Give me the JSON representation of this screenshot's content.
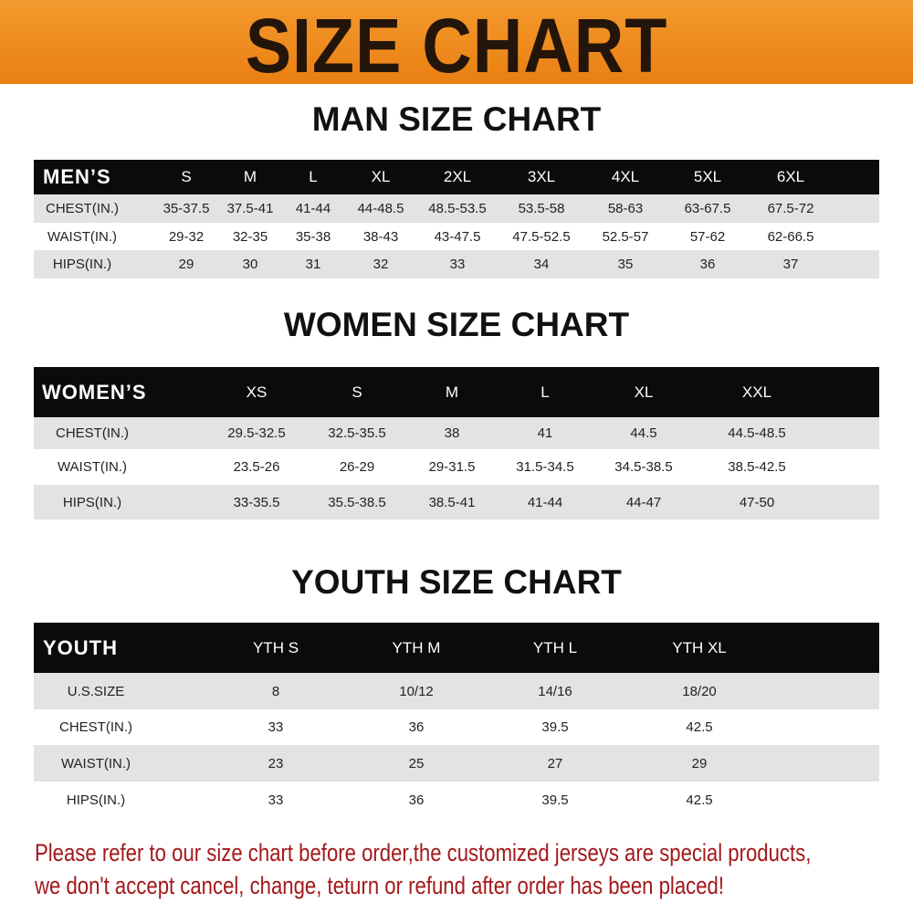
{
  "banner": {
    "title": "SIZE CHART",
    "color": "#ee8a1e"
  },
  "men": {
    "title": "MAN SIZE CHART",
    "header": [
      "MEN’S",
      "S",
      "M",
      "L",
      "XL",
      "2XL",
      "3XL",
      "4XL",
      "5XL",
      "6XL"
    ],
    "rows": [
      [
        "CHEST(IN.)",
        "35-37.5",
        "37.5-41",
        "41-44",
        "44-48.5",
        "48.5-53.5",
        "53.5-58",
        "58-63",
        "63-67.5",
        "67.5-72"
      ],
      [
        "WAIST(IN.)",
        "29-32",
        "32-35",
        "35-38",
        "38-43",
        "43-47.5",
        "47.5-52.5",
        "52.5-57",
        "57-62",
        "62-66.5"
      ],
      [
        "HIPS(IN.)",
        "29",
        "30",
        "31",
        "32",
        "33",
        "34",
        "35",
        "36",
        "37"
      ]
    ]
  },
  "women": {
    "title": "WOMEN SIZE CHART",
    "header": [
      "WOMEN’S",
      "XS",
      "S",
      "M",
      "L",
      "XL",
      "XXL"
    ],
    "rows": [
      [
        "CHEST(IN.)",
        "29.5-32.5",
        "32.5-35.5",
        "38",
        "41",
        "44.5",
        "44.5-48.5"
      ],
      [
        "WAIST(IN.)",
        "23.5-26",
        "26-29",
        "29-31.5",
        "31.5-34.5",
        "34.5-38.5",
        "38.5-42.5"
      ],
      [
        "HIPS(IN.)",
        "33-35.5",
        "35.5-38.5",
        "38.5-41",
        "41-44",
        "44-47",
        "47-50"
      ]
    ]
  },
  "youth": {
    "title": "YOUTH SIZE CHART",
    "header": [
      "YOUTH",
      "YTH S",
      "YTH M",
      "YTH L",
      "YTH XL"
    ],
    "rows": [
      [
        "U.S.SIZE",
        "8",
        "10/12",
        "14/16",
        "18/20"
      ],
      [
        "CHEST(IN.)",
        "33",
        "36",
        "39.5",
        "42.5"
      ],
      [
        "WAIST(IN.)",
        "23",
        "25",
        "27",
        "29"
      ],
      [
        "HIPS(IN.)",
        "33",
        "36",
        "39.5",
        "42.5"
      ]
    ]
  },
  "footer": {
    "line1": "Please refer to our size chart before order,the customized jerseys are special products,",
    "line2": "we don't accept cancel, change, teturn or refund after order has been placed!",
    "color": "#a3181a"
  }
}
